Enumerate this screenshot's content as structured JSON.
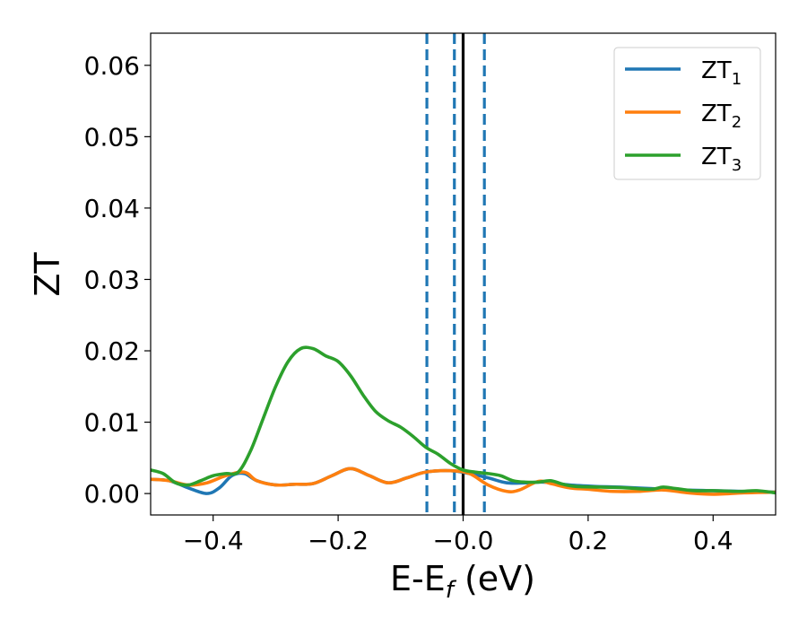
{
  "chart_data": {
    "type": "line",
    "xlabel": {
      "base": "E-E",
      "sub": "f",
      "tail": " (eV)"
    },
    "ylabel": "ZT",
    "xlim": [
      -0.5,
      0.5
    ],
    "ylim": [
      -0.003,
      0.0645
    ],
    "xticks": [
      -0.4,
      -0.2,
      0.0,
      0.2,
      0.4
    ],
    "xtick_labels": [
      "−0.4",
      "−0.2",
      "−0.0",
      "0.2",
      "0.4"
    ],
    "yticks": [
      0.0,
      0.01,
      0.02,
      0.03,
      0.04,
      0.05,
      0.06
    ],
    "ytick_labels": [
      "0.00",
      "0.01",
      "0.02",
      "0.03",
      "0.04",
      "0.05",
      "0.06"
    ],
    "legend_position": "top-right",
    "grid": false,
    "vlines": [
      {
        "x": -0.058,
        "style": "dashed",
        "color": "#1f77b4"
      },
      {
        "x": -0.014,
        "style": "dashed",
        "color": "#1f77b4"
      },
      {
        "x": 0.034,
        "style": "dashed",
        "color": "#1f77b4"
      },
      {
        "x": 0.0,
        "style": "solid",
        "color": "#000000"
      }
    ],
    "series": [
      {
        "name": "ZT",
        "name_sub": "1",
        "color": "#1f77b4",
        "points": [
          [
            -0.5,
            0.002
          ],
          [
            -0.47,
            0.0018
          ],
          [
            -0.44,
            0.0008
          ],
          [
            -0.41,
            0.0
          ],
          [
            -0.39,
            0.0008
          ],
          [
            -0.37,
            0.0025
          ],
          [
            -0.35,
            0.0028
          ],
          [
            -0.33,
            0.0018
          ],
          [
            -0.3,
            0.0012
          ],
          [
            -0.27,
            0.0013
          ],
          [
            -0.24,
            0.0014
          ],
          [
            -0.21,
            0.0025
          ],
          [
            -0.18,
            0.0035
          ],
          [
            -0.15,
            0.0025
          ],
          [
            -0.12,
            0.0015
          ],
          [
            -0.09,
            0.0022
          ],
          [
            -0.06,
            0.003
          ],
          [
            -0.02,
            0.0032
          ],
          [
            0.01,
            0.0028
          ],
          [
            0.04,
            0.0022
          ],
          [
            0.07,
            0.0015
          ],
          [
            0.1,
            0.0015
          ],
          [
            0.13,
            0.0016
          ],
          [
            0.17,
            0.0012
          ],
          [
            0.21,
            0.001
          ],
          [
            0.25,
            0.0009
          ],
          [
            0.3,
            0.0007
          ],
          [
            0.35,
            0.0005
          ],
          [
            0.4,
            0.0004
          ],
          [
            0.45,
            0.0003
          ],
          [
            0.5,
            0.0002
          ]
        ]
      },
      {
        "name": "ZT",
        "name_sub": "2",
        "color": "#ff7f0e",
        "points": [
          [
            -0.5,
            0.002
          ],
          [
            -0.47,
            0.0018
          ],
          [
            -0.44,
            0.0012
          ],
          [
            -0.41,
            0.0015
          ],
          [
            -0.38,
            0.0025
          ],
          [
            -0.35,
            0.003
          ],
          [
            -0.33,
            0.0018
          ],
          [
            -0.3,
            0.0012
          ],
          [
            -0.27,
            0.0013
          ],
          [
            -0.24,
            0.0014
          ],
          [
            -0.21,
            0.0025
          ],
          [
            -0.18,
            0.0035
          ],
          [
            -0.15,
            0.0025
          ],
          [
            -0.12,
            0.0015
          ],
          [
            -0.09,
            0.0022
          ],
          [
            -0.06,
            0.003
          ],
          [
            -0.02,
            0.0032
          ],
          [
            0.01,
            0.0028
          ],
          [
            0.04,
            0.0012
          ],
          [
            0.07,
            0.0003
          ],
          [
            0.09,
            0.0005
          ],
          [
            0.12,
            0.0017
          ],
          [
            0.14,
            0.0014
          ],
          [
            0.17,
            0.0008
          ],
          [
            0.2,
            0.0006
          ],
          [
            0.24,
            0.0003
          ],
          [
            0.28,
            0.0003
          ],
          [
            0.32,
            0.0005
          ],
          [
            0.36,
            0.0001
          ],
          [
            0.4,
            -0.0001
          ],
          [
            0.45,
            0.0001
          ],
          [
            0.5,
            0.0002
          ]
        ]
      },
      {
        "name": "ZT",
        "name_sub": "3",
        "color": "#2ca02c",
        "points": [
          [
            -0.5,
            0.0033
          ],
          [
            -0.48,
            0.0028
          ],
          [
            -0.46,
            0.0015
          ],
          [
            -0.44,
            0.0012
          ],
          [
            -0.42,
            0.0018
          ],
          [
            -0.4,
            0.0025
          ],
          [
            -0.38,
            0.0028
          ],
          [
            -0.36,
            0.003
          ],
          [
            -0.34,
            0.006
          ],
          [
            -0.32,
            0.0105
          ],
          [
            -0.3,
            0.015
          ],
          [
            -0.28,
            0.0185
          ],
          [
            -0.26,
            0.0203
          ],
          [
            -0.24,
            0.0203
          ],
          [
            -0.22,
            0.0193
          ],
          [
            -0.2,
            0.0185
          ],
          [
            -0.18,
            0.0165
          ],
          [
            -0.16,
            0.0138
          ],
          [
            -0.14,
            0.0115
          ],
          [
            -0.12,
            0.0102
          ],
          [
            -0.1,
            0.0093
          ],
          [
            -0.08,
            0.008
          ],
          [
            -0.06,
            0.0065
          ],
          [
            -0.04,
            0.0055
          ],
          [
            -0.02,
            0.0042
          ],
          [
            0.0,
            0.0033
          ],
          [
            0.02,
            0.003
          ],
          [
            0.04,
            0.0028
          ],
          [
            0.06,
            0.0025
          ],
          [
            0.08,
            0.0018
          ],
          [
            0.1,
            0.0016
          ],
          [
            0.12,
            0.0016
          ],
          [
            0.14,
            0.0018
          ],
          [
            0.16,
            0.0013
          ],
          [
            0.18,
            0.001
          ],
          [
            0.22,
            0.0009
          ],
          [
            0.26,
            0.0008
          ],
          [
            0.3,
            0.0006
          ],
          [
            0.32,
            0.0009
          ],
          [
            0.34,
            0.0007
          ],
          [
            0.37,
            0.0004
          ],
          [
            0.4,
            0.0004
          ],
          [
            0.44,
            0.0003
          ],
          [
            0.47,
            0.0004
          ],
          [
            0.5,
            0.0001
          ]
        ]
      }
    ]
  }
}
